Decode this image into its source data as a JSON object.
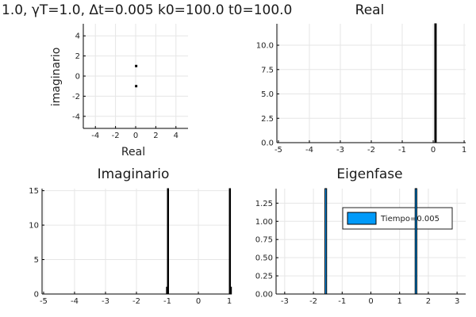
{
  "figure": {
    "suptitle": "1.0,  γT=1.0,   Δt=0.005 k0=100.0 t0=100.0"
  },
  "chart_data": [
    {
      "id": "eigenvalues",
      "type": "scatter",
      "title": "",
      "xlabel": "Real",
      "ylabel": "imaginario",
      "xlim": [
        -5.2,
        5.2
      ],
      "ylim": [
        -5.2,
        5.2
      ],
      "xticks": [
        -4,
        -2,
        0,
        2,
        4
      ],
      "yticks": [
        -4,
        -2,
        0,
        2,
        4
      ],
      "grid": true,
      "points": [
        {
          "x": 0.05,
          "y": 1.0
        },
        {
          "x": 0.05,
          "y": -1.0
        }
      ],
      "color": "#000000"
    },
    {
      "id": "real-hist",
      "type": "bar",
      "title": "Real",
      "xlim": [
        -5.05,
        1.05
      ],
      "ylim": [
        0,
        12.2
      ],
      "xticks": [
        -5,
        -4,
        -3,
        -2,
        -1,
        0,
        1
      ],
      "yticks": [
        0.0,
        2.5,
        5.0,
        7.5,
        10.0
      ],
      "ytick_labels": [
        "0.0",
        "2.5",
        "5.0",
        "7.5",
        "10.0"
      ],
      "grid": true,
      "bars": [
        {
          "x0": 0.05,
          "x1": 0.1,
          "value": 12.2
        }
      ],
      "color": "#000000"
    },
    {
      "id": "imag-hist",
      "type": "bar",
      "title": "Imaginario",
      "xlim": [
        -5.05,
        1.05
      ],
      "ylim": [
        0,
        15.3
      ],
      "xticks": [
        -5,
        -4,
        -3,
        -2,
        -1,
        0,
        1
      ],
      "yticks": [
        0,
        5,
        10,
        15
      ],
      "grid": true,
      "bars": [
        {
          "x0": -1.0,
          "x1": -0.97,
          "value": 15.3
        },
        {
          "x0": -1.03,
          "x1": -1.0,
          "value": 1.0
        },
        {
          "x0": 1.0,
          "x1": 1.03,
          "value": 15.3
        },
        {
          "x0": 1.03,
          "x1": 1.06,
          "value": 1.0
        }
      ],
      "color": "#000000"
    },
    {
      "id": "eigenfase-hist",
      "type": "bar",
      "title": "Eigenfase",
      "xlim": [
        -3.3,
        3.3
      ],
      "ylim": [
        0,
        1.45
      ],
      "xticks": [
        -3,
        -2,
        -1,
        0,
        1,
        2,
        3
      ],
      "yticks": [
        0.0,
        0.25,
        0.5,
        0.75,
        1.0,
        1.25
      ],
      "ytick_labels": [
        "0.00",
        "0.25",
        "0.50",
        "0.75",
        "1.00",
        "1.25"
      ],
      "grid": true,
      "bars": [
        {
          "x0": -1.6,
          "x1": -1.54,
          "value": 1.45
        },
        {
          "x0": 1.54,
          "x1": 1.6,
          "value": 1.45
        }
      ],
      "color": "#009AF9",
      "edgecolor": "#000000",
      "legend": {
        "label": "Tiempo=0.005",
        "placement": "top-right"
      }
    }
  ]
}
